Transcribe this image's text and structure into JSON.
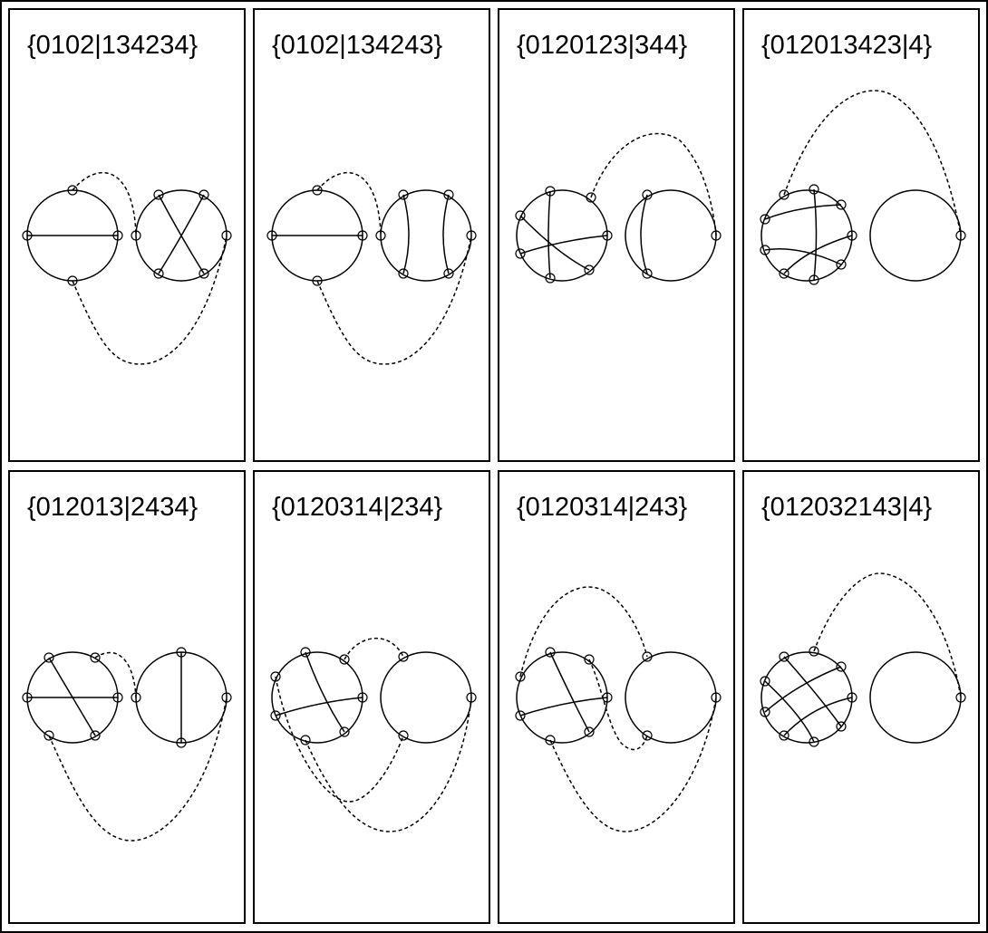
{
  "panels": [
    {
      "label": "{0102|134234}"
    },
    {
      "label": "{0102|134243}"
    },
    {
      "label": "{0120123|344}"
    },
    {
      "label": "{012013423|4}"
    },
    {
      "label": "{012013|2434}"
    },
    {
      "label": "{0120314|234}"
    },
    {
      "label": "{0120314|243}"
    },
    {
      "label": "{012032143|4}"
    }
  ]
}
